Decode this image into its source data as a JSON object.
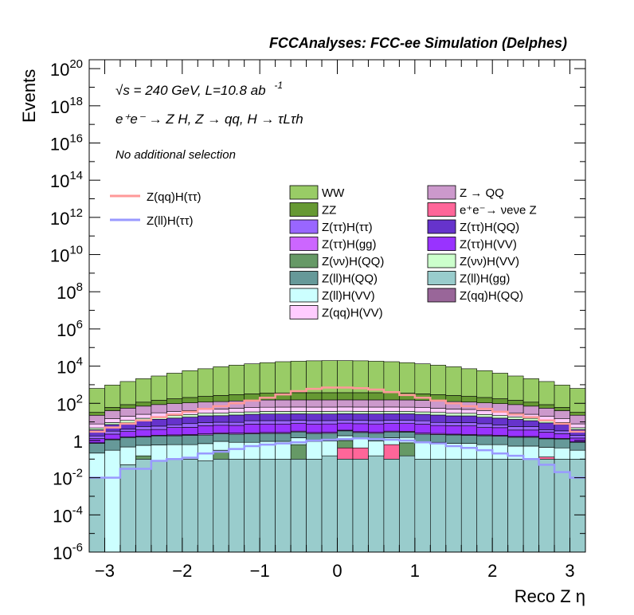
{
  "header": {
    "title": "FCCAnalyses: FCC-ee Simulation (Delphes)"
  },
  "annotations": {
    "energy": "√s = 240 GeV, L=10.8 ab",
    "energy_sup": "-1",
    "process": "e⁺e⁻ → Z H, Z → qq, H → τLτh",
    "selection": "No additional selection"
  },
  "colors": {
    "WW": "#99cc66",
    "ZZ": "#669933",
    "Z_tautau_H_tautau": "#9966ff",
    "Z_tautau_H_gg": "#cc66ff",
    "Z_nunu_H_QQ": "#669966",
    "Z_ll_H_QQ": "#669999",
    "Z_ll_H_VV": "#ccffff",
    "Z_qq_H_VV": "#ffccff",
    "Z_QQ": "#cc99cc",
    "nunuZ": "#ff6699",
    "Z_tautau_H_QQ": "#6633cc",
    "Z_tautau_H_VV": "#9933ff",
    "Z_nunu_H_VV": "#ccffcc",
    "Z_ll_H_gg": "#99cccc",
    "Z_qq_H_QQ": "#996699",
    "signal_qq": "#ff9999",
    "signal_ll": "#9999ff"
  },
  "chart_data": {
    "type": "histogram",
    "title": "FCCAnalyses: FCC-ee Simulation (Delphes)",
    "xlabel": "Reco Z η",
    "ylabel": "Events",
    "xlim": [
      -3.2,
      3.2
    ],
    "ylim": [
      1e-06,
      3e+20
    ],
    "log_y": true,
    "x_ticks": [
      "−3",
      "−2",
      "−1",
      "0",
      "1",
      "2",
      "3"
    ],
    "y_ticks": [
      {
        "base": "10",
        "exp": "20",
        "value": 1e+20
      },
      {
        "base": "10",
        "exp": "18",
        "value": 1e+18
      },
      {
        "base": "10",
        "exp": "16",
        "value": 1e+16
      },
      {
        "base": "10",
        "exp": "14",
        "value": 100000000000000.0
      },
      {
        "base": "10",
        "exp": "12",
        "value": 1000000000000.0
      },
      {
        "base": "10",
        "exp": "10",
        "value": 10000000000.0
      },
      {
        "base": "10",
        "exp": "8",
        "value": 100000000.0
      },
      {
        "base": "10",
        "exp": "6",
        "value": 1000000.0
      },
      {
        "base": "10",
        "exp": "4",
        "value": 10000.0
      },
      {
        "base": "10",
        "exp": "2",
        "value": 100.0
      },
      {
        "base": "1",
        "exp": "",
        "value": 1
      },
      {
        "base": "10",
        "exp": "-2",
        "value": 0.01
      },
      {
        "base": "10",
        "exp": "-4",
        "value": 0.0001
      },
      {
        "base": "10",
        "exp": "-6",
        "value": 1e-06
      }
    ],
    "bin_edges": [
      -3.2,
      -3.0,
      -2.8,
      -2.6,
      -2.4,
      -2.2,
      -2.0,
      -1.8,
      -1.6,
      -1.4,
      -1.2,
      -1.0,
      -0.8,
      -0.6,
      -0.4,
      -0.2,
      0.0,
      0.2,
      0.4,
      0.6,
      0.8,
      1.0,
      1.2,
      1.4,
      1.6,
      1.8,
      2.0,
      2.2,
      2.4,
      2.6,
      2.8,
      3.0,
      3.2
    ],
    "stack_layers": [
      {
        "name": "Z(ll)H(gg)",
        "color": "#99cccc",
        "values": [
          0.01,
          1e-06,
          0.05,
          0.1,
          0.08,
          0.1,
          0.1,
          0.08,
          0.1,
          0.1,
          0.1,
          0.1,
          0.1,
          0.1,
          0.1,
          0.15,
          0.1,
          0.1,
          0.15,
          0.1,
          0.15,
          0.1,
          0.1,
          0.1,
          0.1,
          0.1,
          0.1,
          0.1,
          0.1,
          0.1,
          0.1,
          0.1
        ]
      },
      {
        "name": "Z(qq)H(QQ)",
        "color": "#996699",
        "values": [
          0,
          0,
          0,
          0,
          0,
          0,
          0,
          0,
          0,
          0,
          0,
          0,
          0,
          0,
          0,
          0,
          0,
          0,
          0,
          0,
          0,
          0,
          0,
          0,
          0,
          0,
          0,
          0,
          0.0001,
          0,
          0,
          0
        ]
      },
      {
        "name": "e+e- → νeνe Z",
        "color": "#ff6699",
        "values": [
          0,
          0,
          0,
          0,
          0,
          0,
          0,
          0,
          0,
          0,
          0,
          0,
          0,
          0,
          0,
          0,
          0.3,
          0.3,
          0,
          0.5,
          0,
          0,
          0,
          0,
          0,
          0,
          0,
          0,
          0,
          0.03,
          0,
          0
        ]
      },
      {
        "name": "Z(νν)H(QQ)",
        "color": "#669966",
        "values": [
          0,
          0,
          0,
          0.05,
          0,
          0,
          0,
          0,
          0.2,
          0,
          0,
          0,
          0,
          0.5,
          0,
          0,
          0.6,
          0,
          0,
          0,
          0.6,
          0,
          0,
          0,
          0,
          0,
          0,
          0,
          0,
          0,
          0,
          0
        ]
      },
      {
        "name": "Z(ll)H(VV)",
        "color": "#ccffff",
        "values": [
          0.2,
          0.3,
          0.4,
          0.4,
          0.5,
          0.5,
          0.5,
          0.6,
          0.6,
          0.7,
          0.7,
          0.8,
          0.8,
          0.8,
          0.8,
          0.8,
          0.8,
          0.8,
          0.8,
          0.8,
          0.7,
          0.7,
          0.7,
          0.6,
          0.6,
          0.5,
          0.5,
          0.4,
          0.4,
          0.3,
          0.3,
          0.2
        ]
      },
      {
        "name": "Z(ll)H(QQ)",
        "color": "#669999",
        "values": [
          0.5,
          0.8,
          1,
          1,
          1.2,
          1.2,
          1.3,
          1.3,
          1.4,
          1.4,
          1.5,
          1.5,
          1.5,
          1.5,
          1.5,
          1.5,
          1.5,
          1.5,
          1.5,
          1.5,
          1.4,
          1.4,
          1.3,
          1.3,
          1.2,
          1.2,
          1.1,
          1,
          1,
          0.8,
          0.8,
          0.5
        ]
      },
      {
        "name": "Z(ττ)H(gg)",
        "color": "#cc66ff",
        "values": [
          0.05,
          0.1,
          0.1,
          0.15,
          0.15,
          0.2,
          0.2,
          0.3,
          0.3,
          0.3,
          0.3,
          0.3,
          0.3,
          0.3,
          0.3,
          0.3,
          0.3,
          0.3,
          0.3,
          0.3,
          0.3,
          0.3,
          0.3,
          0.2,
          0.2,
          0.2,
          0.2,
          0.15,
          0.15,
          0.1,
          0.1,
          0.05
        ]
      },
      {
        "name": "Z(ττ)H(VV)",
        "color": "#9933ff",
        "values": [
          0.5,
          1,
          1.5,
          2,
          2,
          3,
          3,
          4,
          4,
          4,
          5,
          5,
          5,
          5,
          5,
          5,
          5,
          5,
          5,
          5,
          5,
          5,
          4,
          4,
          4,
          3,
          3,
          2,
          2,
          1.5,
          1,
          0.5
        ]
      },
      {
        "name": "Z(ττ)H(ττ)",
        "color": "#9966ff",
        "values": [
          0.5,
          1,
          1,
          2,
          2,
          2,
          3,
          3,
          3,
          3,
          4,
          4,
          4,
          4,
          4,
          4,
          4,
          4,
          4,
          4,
          4,
          4,
          3,
          3,
          3,
          3,
          2,
          2,
          2,
          1,
          1,
          0.5
        ]
      },
      {
        "name": "Z(ττ)H(QQ)",
        "color": "#6633cc",
        "values": [
          2,
          4,
          5,
          6,
          8,
          9,
          10,
          12,
          12,
          14,
          14,
          15,
          15,
          15,
          15,
          15,
          15,
          15,
          15,
          15,
          15,
          14,
          14,
          12,
          12,
          10,
          9,
          8,
          6,
          5,
          4,
          2
        ]
      },
      {
        "name": "Z(νν)H(VV)",
        "color": "#ccffcc",
        "values": [
          1,
          2,
          3,
          4,
          5,
          6,
          7,
          8,
          8,
          9,
          9,
          10,
          10,
          10,
          10,
          10,
          10,
          10,
          10,
          10,
          10,
          9,
          9,
          8,
          8,
          7,
          6,
          5,
          4,
          3,
          2,
          1
        ]
      },
      {
        "name": "Z(qq)H(VV)",
        "color": "#ffccff",
        "values": [
          3,
          6,
          8,
          10,
          12,
          14,
          16,
          18,
          20,
          22,
          24,
          25,
          26,
          26,
          26,
          26,
          26,
          26,
          26,
          26,
          25,
          24,
          22,
          20,
          18,
          16,
          14,
          12,
          10,
          8,
          6,
          3
        ]
      },
      {
        "name": "Z → QQ",
        "color": "#cc99cc",
        "values": [
          15,
          25,
          35,
          45,
          55,
          60,
          65,
          70,
          75,
          80,
          85,
          90,
          90,
          90,
          90,
          90,
          90,
          90,
          90,
          90,
          90,
          85,
          80,
          75,
          70,
          65,
          60,
          55,
          45,
          35,
          25,
          15
        ]
      },
      {
        "name": "ZZ",
        "color": "#669933",
        "values": [
          10,
          20,
          30,
          45,
          60,
          80,
          100,
          120,
          140,
          160,
          180,
          200,
          210,
          220,
          220,
          220,
          220,
          220,
          220,
          210,
          200,
          180,
          160,
          140,
          120,
          100,
          80,
          60,
          45,
          30,
          20,
          10
        ]
      },
      {
        "name": "WW",
        "color": "#99cc66",
        "values": [
          600,
          900,
          1400,
          2000,
          2800,
          4000,
          5500,
          7000,
          9000,
          11000,
          13000,
          15000,
          17000,
          18000,
          19000,
          19500,
          19500,
          19000,
          18000,
          17000,
          15000,
          13000,
          11000,
          9000,
          7000,
          5500,
          4000,
          2800,
          2000,
          1400,
          900,
          600
        ]
      }
    ],
    "lines": [
      {
        "name": "Z(qq)H(ττ)",
        "color": "#ff9999",
        "values": [
          3,
          5,
          8,
          12,
          18,
          25,
          35,
          50,
          70,
          100,
          140,
          200,
          300,
          450,
          600,
          700,
          700,
          650,
          550,
          400,
          280,
          200,
          140,
          100,
          70,
          50,
          35,
          25,
          18,
          12,
          8,
          3
        ]
      },
      {
        "name": "Z(ll)H(ττ)",
        "color": "#9999ff",
        "values": [
          0.01,
          0.01,
          0.03,
          0.03,
          0.08,
          0.1,
          0.12,
          0.2,
          0.25,
          0.35,
          0.5,
          0.6,
          0.7,
          0.8,
          1,
          1.1,
          1.2,
          1.3,
          1.2,
          1.1,
          1,
          0.8,
          0.7,
          0.5,
          0.4,
          0.3,
          0.2,
          0.15,
          0.1,
          0.05,
          0.02,
          0.01
        ]
      }
    ],
    "legend": {
      "placement": "top-right",
      "lines": [
        {
          "label": "Z(qq)H(ττ)",
          "color": "#ff9999"
        },
        {
          "label": "Z(ll)H(ττ)",
          "color": "#9999ff"
        }
      ],
      "col1": [
        {
          "label": "WW",
          "color": "#99cc66"
        },
        {
          "label": "ZZ",
          "color": "#669933"
        },
        {
          "label": "Z(ττ)H(ττ)",
          "color": "#9966ff"
        },
        {
          "label": "Z(ττ)H(gg)",
          "color": "#cc66ff"
        },
        {
          "label": "Z(νν)H(QQ)",
          "color": "#669966"
        },
        {
          "label": "Z(ll)H(QQ)",
          "color": "#669999"
        },
        {
          "label": "Z(ll)H(VV)",
          "color": "#ccffff"
        },
        {
          "label": "Z(qq)H(VV)",
          "color": "#ffccff"
        }
      ],
      "col2": [
        {
          "label": "Z → QQ",
          "color": "#cc99cc"
        },
        {
          "label": "e⁺e⁻→ νeνe Z",
          "color": "#ff6699"
        },
        {
          "label": "Z(ττ)H(QQ)",
          "color": "#6633cc"
        },
        {
          "label": "Z(ττ)H(VV)",
          "color": "#9933ff"
        },
        {
          "label": "Z(νν)H(VV)",
          "color": "#ccffcc"
        },
        {
          "label": "Z(ll)H(gg)",
          "color": "#99cccc"
        },
        {
          "label": "Z(qq)H(QQ)",
          "color": "#996699"
        }
      ]
    }
  }
}
